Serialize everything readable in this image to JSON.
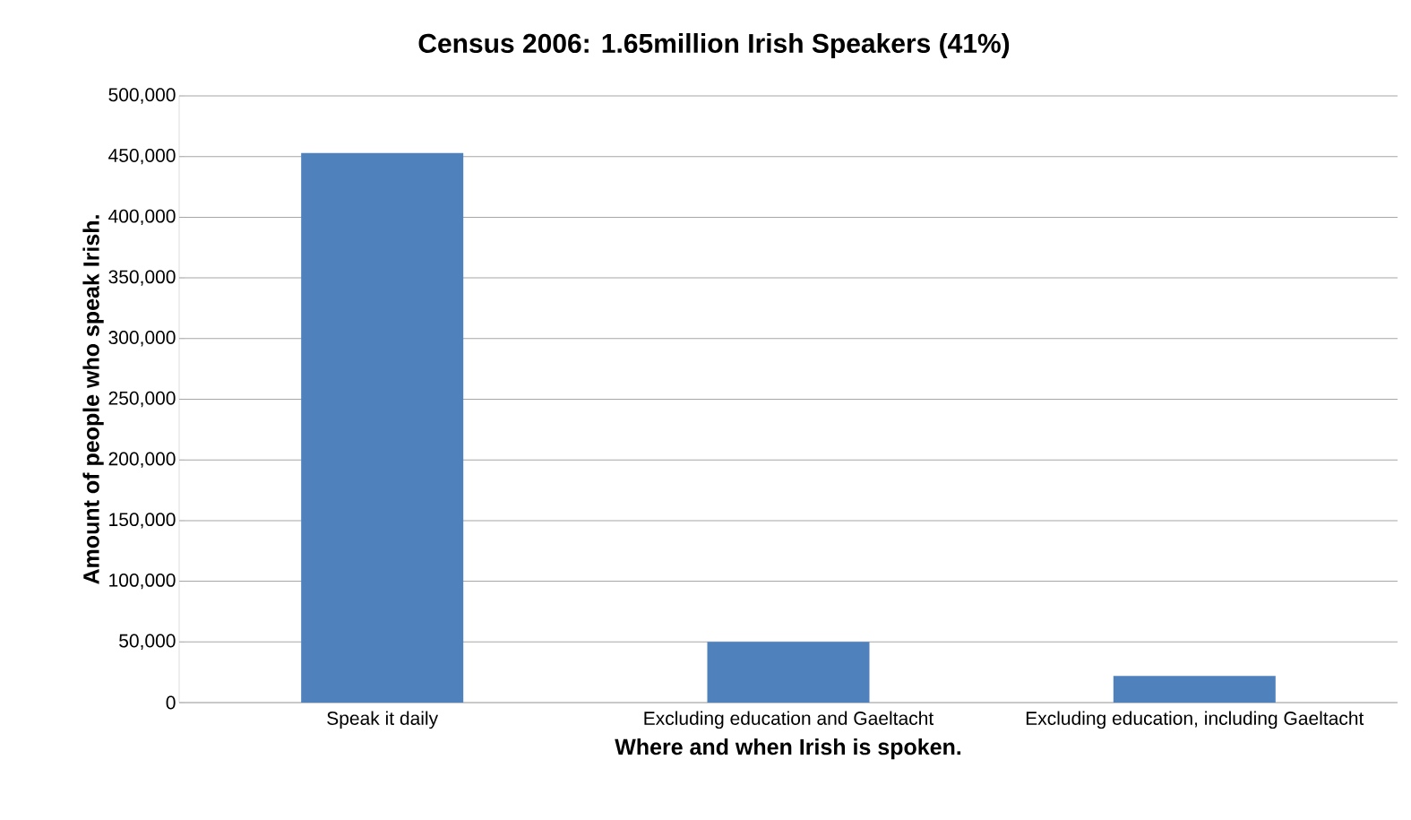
{
  "chart_data": {
    "type": "bar",
    "title": "Census 2006: 1.65million Irish Speakers (41%)",
    "xlabel": "Where and when Irish is spoken.",
    "ylabel": "Amount of people who speak Irish.",
    "categories": [
      "Speak it daily",
      "Excluding education and Gaeltacht",
      "Excluding education, including Gaeltacht"
    ],
    "values": [
      453000,
      50000,
      22000
    ],
    "color": "#4f81bd",
    "ylim": [
      0,
      500000
    ],
    "yticks": [
      {
        "value": 0,
        "label": "0"
      },
      {
        "value": 50000,
        "label": "50,000"
      },
      {
        "value": 100000,
        "label": "100,000"
      },
      {
        "value": 150000,
        "label": "150,000"
      },
      {
        "value": 200000,
        "label": "200,000"
      },
      {
        "value": 250000,
        "label": "250,000"
      },
      {
        "value": 300000,
        "label": "300,000"
      },
      {
        "value": 350000,
        "label": "350,000"
      },
      {
        "value": 400000,
        "label": "400,000"
      },
      {
        "value": 450000,
        "label": "450,000"
      },
      {
        "value": 500000,
        "label": "500,000"
      }
    ],
    "grid": "y"
  }
}
